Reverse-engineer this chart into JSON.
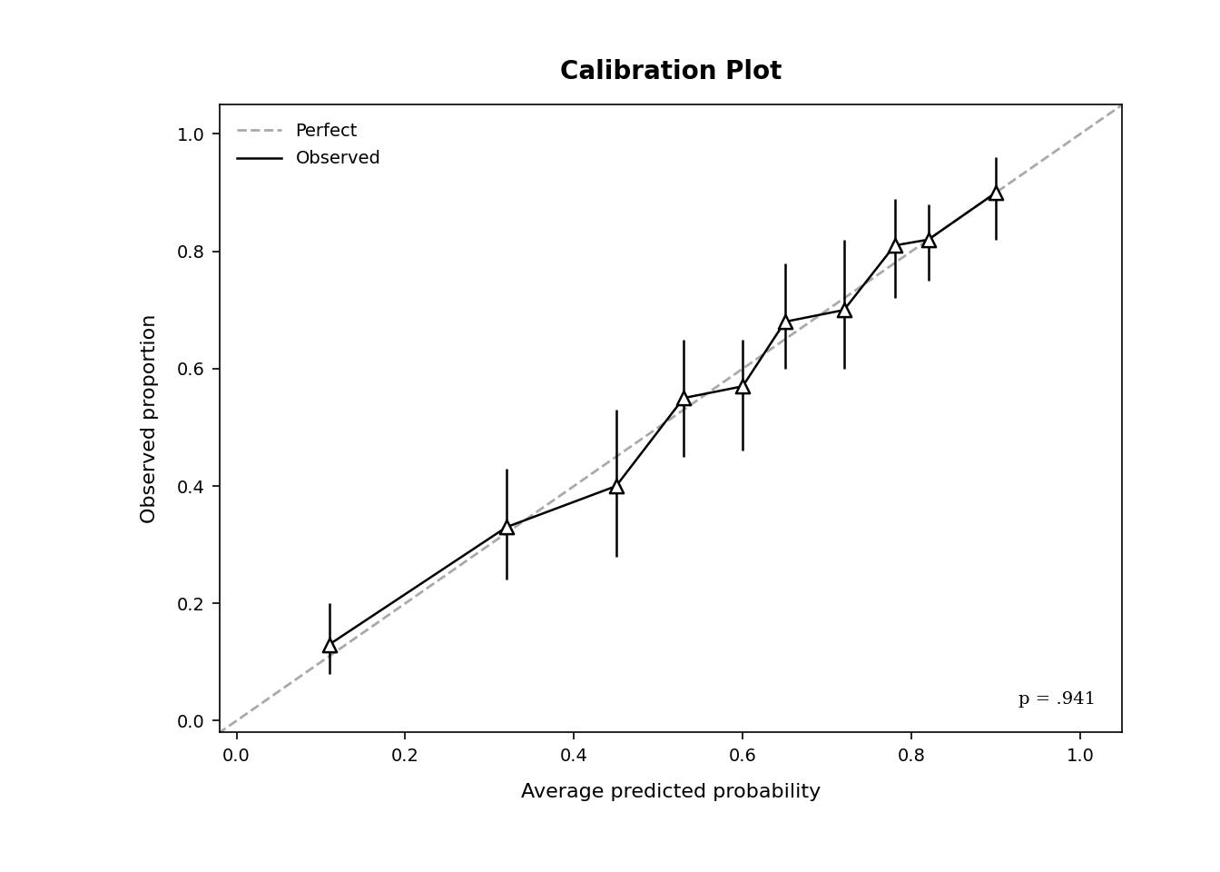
{
  "title": "Calibration Plot",
  "xlabel": "Average predicted probability",
  "ylabel": "Observed proportion",
  "xlim": [
    -0.02,
    1.05
  ],
  "ylim": [
    -0.02,
    1.05
  ],
  "xticks": [
    0.0,
    0.2,
    0.4,
    0.6,
    0.8,
    1.0
  ],
  "yticks": [
    0.0,
    0.2,
    0.4,
    0.6,
    0.8,
    1.0
  ],
  "points_x": [
    0.11,
    0.32,
    0.45,
    0.53,
    0.6,
    0.65,
    0.72,
    0.78,
    0.82,
    0.9
  ],
  "points_y": [
    0.13,
    0.33,
    0.4,
    0.55,
    0.57,
    0.68,
    0.7,
    0.81,
    0.82,
    0.9
  ],
  "yerr_low": [
    0.05,
    0.09,
    0.12,
    0.1,
    0.11,
    0.08,
    0.1,
    0.09,
    0.07,
    0.08
  ],
  "yerr_high": [
    0.07,
    0.1,
    0.13,
    0.1,
    0.08,
    0.1,
    0.12,
    0.08,
    0.06,
    0.06
  ],
  "p_value_text": "p = .941",
  "line_color": "#000000",
  "perfect_color": "#aaaaaa",
  "background_color": "#ffffff",
  "title_fontsize": 20,
  "axis_label_fontsize": 16,
  "tick_fontsize": 14,
  "annotation_fontsize": 14
}
